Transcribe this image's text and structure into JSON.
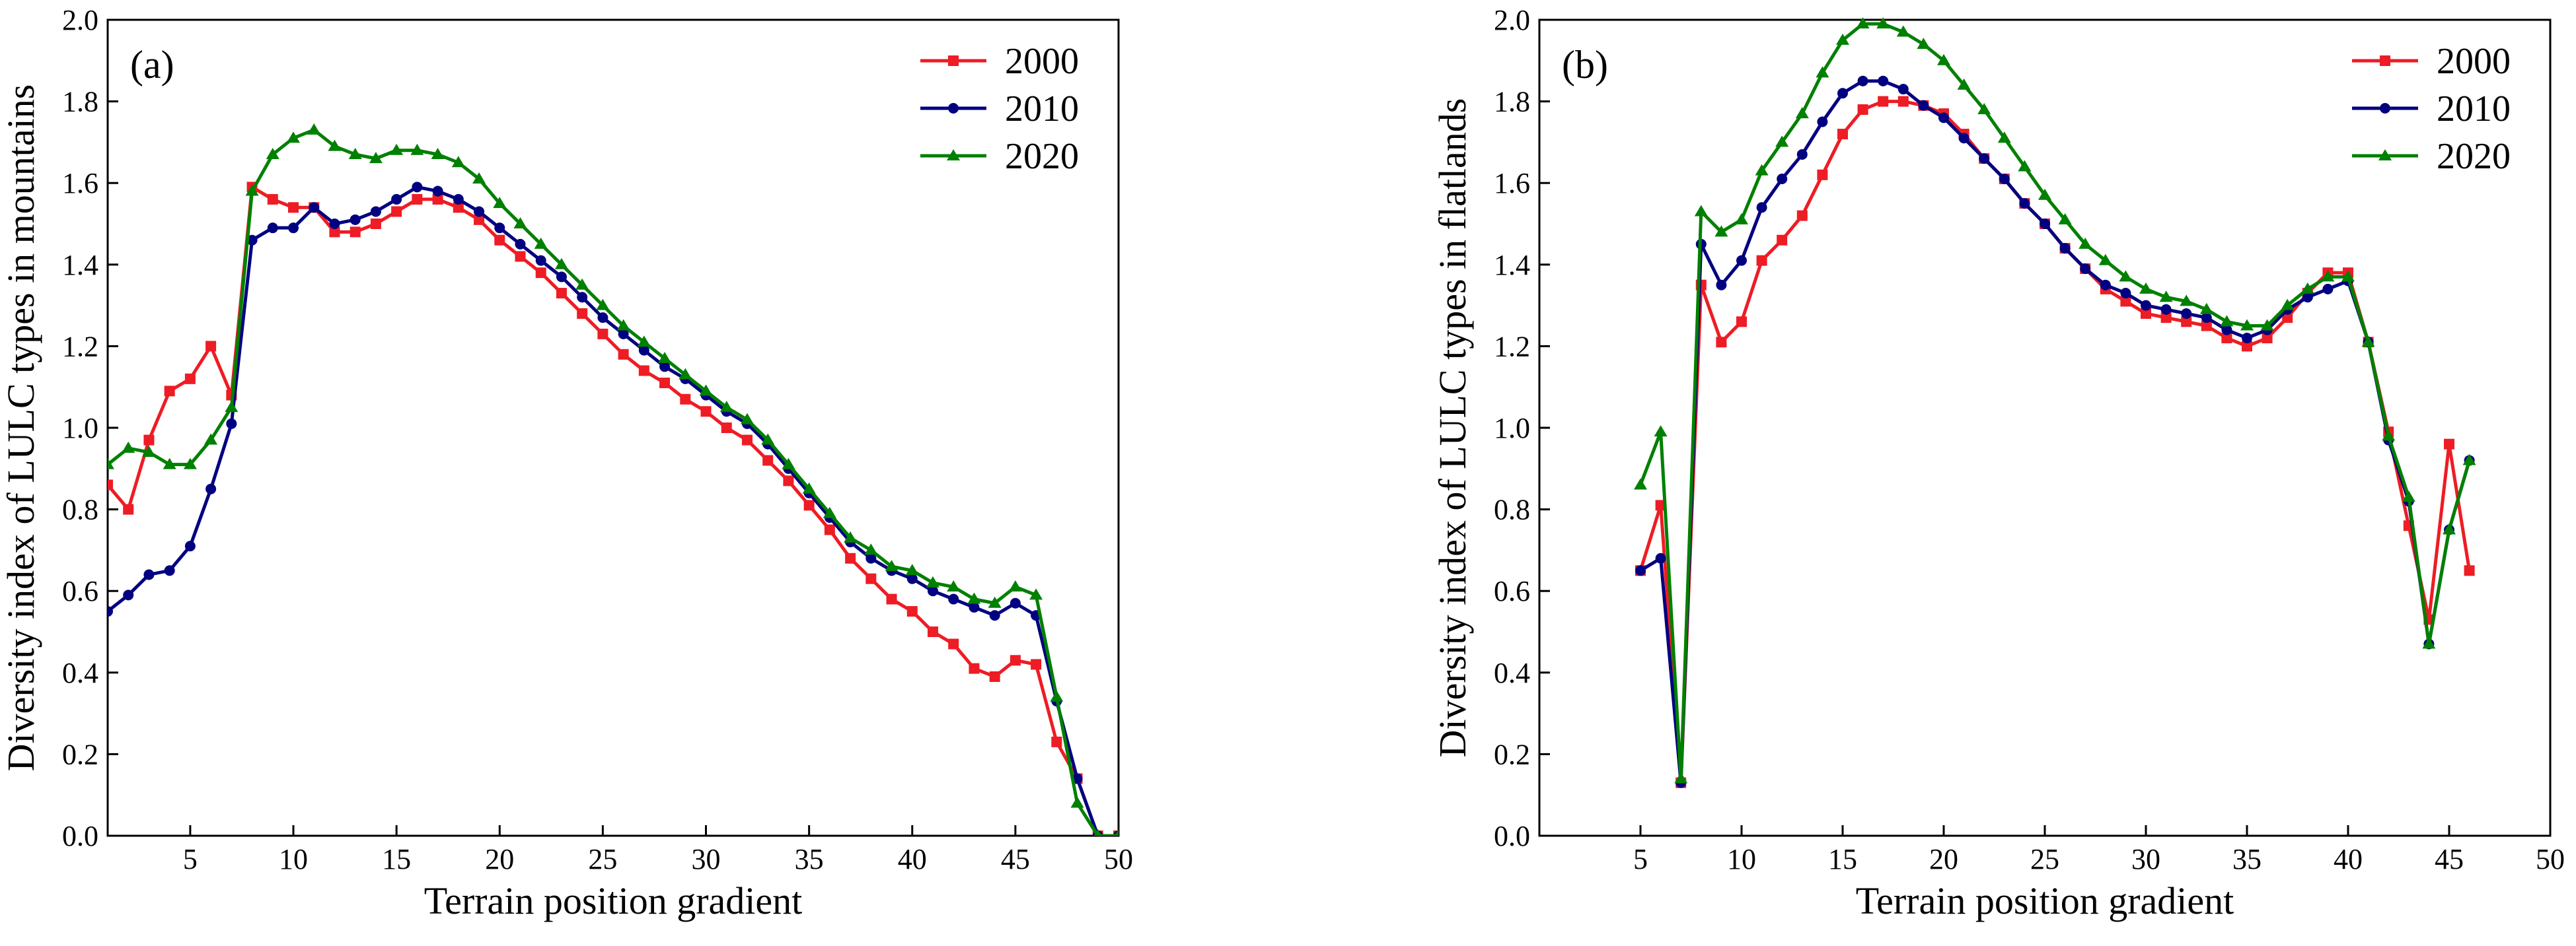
{
  "colors": {
    "2000": "#ee1c24",
    "2010": "#000080",
    "2020": "#008000"
  },
  "chart_data": [
    {
      "type": "line",
      "panel_label": "(a)",
      "xlabel": "Terrain position gradient",
      "ylabel": "Diversity index of LULC types in mountains",
      "xlim": [
        1,
        50
      ],
      "ylim": [
        0,
        2.0
      ],
      "xticks": [
        5,
        10,
        15,
        20,
        25,
        30,
        35,
        40,
        45,
        50
      ],
      "yticks": [
        0.0,
        0.2,
        0.4,
        0.6,
        0.8,
        1.0,
        1.2,
        1.4,
        1.6,
        1.8,
        2.0
      ],
      "ytick_labels": [
        "0.0",
        "0.2",
        "0.4",
        "0.6",
        "0.8",
        "1.0",
        "1.2",
        "1.4",
        "1.6",
        "1.8",
        "2.0"
      ],
      "legend_position": "top-right",
      "series": [
        {
          "name": "2000",
          "marker": "square",
          "x": [
            1,
            2,
            3,
            4,
            5,
            6,
            7,
            8,
            9,
            10,
            11,
            12,
            13,
            14,
            15,
            16,
            17,
            18,
            19,
            20,
            21,
            22,
            23,
            24,
            25,
            26,
            27,
            28,
            29,
            30,
            31,
            32,
            33,
            34,
            35,
            36,
            37,
            38,
            39,
            40,
            41,
            42,
            43,
            44,
            45,
            46,
            47,
            48,
            49,
            50
          ],
          "values": [
            0.86,
            0.8,
            0.97,
            1.09,
            1.12,
            1.2,
            1.08,
            1.59,
            1.56,
            1.54,
            1.54,
            1.48,
            1.48,
            1.5,
            1.53,
            1.56,
            1.56,
            1.54,
            1.51,
            1.46,
            1.42,
            1.38,
            1.33,
            1.28,
            1.23,
            1.18,
            1.14,
            1.11,
            1.07,
            1.04,
            1.0,
            0.97,
            0.92,
            0.87,
            0.81,
            0.75,
            0.68,
            0.63,
            0.58,
            0.55,
            0.5,
            0.47,
            0.41,
            0.39,
            0.43,
            0.42,
            0.23,
            0.14,
            0.0,
            0.0
          ]
        },
        {
          "name": "2010",
          "marker": "circle",
          "x": [
            1,
            2,
            3,
            4,
            5,
            6,
            7,
            8,
            9,
            10,
            11,
            12,
            13,
            14,
            15,
            16,
            17,
            18,
            19,
            20,
            21,
            22,
            23,
            24,
            25,
            26,
            27,
            28,
            29,
            30,
            31,
            32,
            33,
            34,
            35,
            36,
            37,
            38,
            39,
            40,
            41,
            42,
            43,
            44,
            45,
            46,
            47,
            48,
            49,
            50
          ],
          "values": [
            0.55,
            0.59,
            0.64,
            0.65,
            0.71,
            0.85,
            1.01,
            1.46,
            1.49,
            1.49,
            1.54,
            1.5,
            1.51,
            1.53,
            1.56,
            1.59,
            1.58,
            1.56,
            1.53,
            1.49,
            1.45,
            1.41,
            1.37,
            1.32,
            1.27,
            1.23,
            1.19,
            1.15,
            1.12,
            1.08,
            1.04,
            1.01,
            0.96,
            0.9,
            0.84,
            0.78,
            0.72,
            0.68,
            0.65,
            0.63,
            0.6,
            0.58,
            0.56,
            0.54,
            0.57,
            0.54,
            0.33,
            0.14,
            0.0,
            0.0
          ]
        },
        {
          "name": "2020",
          "marker": "triangle",
          "x": [
            1,
            2,
            3,
            4,
            5,
            6,
            7,
            8,
            9,
            10,
            11,
            12,
            13,
            14,
            15,
            16,
            17,
            18,
            19,
            20,
            21,
            22,
            23,
            24,
            25,
            26,
            27,
            28,
            29,
            30,
            31,
            32,
            33,
            34,
            35,
            36,
            37,
            38,
            39,
            40,
            41,
            42,
            43,
            44,
            45,
            46,
            47,
            48,
            49,
            50
          ],
          "values": [
            0.91,
            0.95,
            0.94,
            0.91,
            0.91,
            0.97,
            1.05,
            1.58,
            1.67,
            1.71,
            1.73,
            1.69,
            1.67,
            1.66,
            1.68,
            1.68,
            1.67,
            1.65,
            1.61,
            1.55,
            1.5,
            1.45,
            1.4,
            1.35,
            1.3,
            1.25,
            1.21,
            1.17,
            1.13,
            1.09,
            1.05,
            1.02,
            0.97,
            0.91,
            0.85,
            0.79,
            0.73,
            0.7,
            0.66,
            0.65,
            0.62,
            0.61,
            0.58,
            0.57,
            0.61,
            0.59,
            0.34,
            0.08,
            0.0,
            0.0
          ]
        }
      ]
    },
    {
      "type": "line",
      "panel_label": "(b)",
      "xlabel": "Terrain position gradient",
      "ylabel": "Diversity index of LULC types in flatlands",
      "xlim": [
        0,
        50
      ],
      "ylim": [
        0,
        2.0
      ],
      "xticks": [
        5,
        10,
        15,
        20,
        25,
        30,
        35,
        40,
        45,
        50
      ],
      "yticks": [
        0.0,
        0.2,
        0.4,
        0.6,
        0.8,
        1.0,
        1.2,
        1.4,
        1.6,
        1.8,
        2.0
      ],
      "ytick_labels": [
        "0.0",
        "0.2",
        "0.4",
        "0.6",
        "0.8",
        "1.0",
        "1.2",
        "1.4",
        "1.6",
        "1.8",
        "2.0"
      ],
      "legend_position": "top-right",
      "series": [
        {
          "name": "2000",
          "marker": "square",
          "x": [
            5,
            6,
            7,
            8,
            9,
            10,
            11,
            12,
            13,
            14,
            15,
            16,
            17,
            18,
            19,
            20,
            21,
            22,
            23,
            24,
            25,
            26,
            27,
            28,
            29,
            30,
            31,
            32,
            33,
            34,
            35,
            36,
            37,
            38,
            39,
            40,
            41,
            42,
            43,
            44,
            45,
            46
          ],
          "values": [
            0.65,
            0.81,
            0.13,
            1.35,
            1.21,
            1.26,
            1.41,
            1.46,
            1.52,
            1.62,
            1.72,
            1.78,
            1.8,
            1.8,
            1.79,
            1.77,
            1.72,
            1.66,
            1.61,
            1.55,
            1.5,
            1.44,
            1.39,
            1.34,
            1.31,
            1.28,
            1.27,
            1.26,
            1.25,
            1.22,
            1.2,
            1.22,
            1.27,
            1.33,
            1.38,
            1.38,
            1.21,
            0.99,
            0.76,
            0.53,
            0.96,
            0.65
          ]
        },
        {
          "name": "2010",
          "marker": "circle",
          "x": [
            5,
            6,
            7,
            8,
            9,
            10,
            11,
            12,
            13,
            14,
            15,
            16,
            17,
            18,
            19,
            20,
            21,
            22,
            23,
            24,
            25,
            26,
            27,
            28,
            29,
            30,
            31,
            32,
            33,
            34,
            35,
            36,
            37,
            38,
            39,
            40,
            41,
            42,
            43,
            44,
            45,
            46
          ],
          "values": [
            0.65,
            0.68,
            0.13,
            1.45,
            1.35,
            1.41,
            1.54,
            1.61,
            1.67,
            1.75,
            1.82,
            1.85,
            1.85,
            1.83,
            1.79,
            1.76,
            1.71,
            1.66,
            1.61,
            1.55,
            1.5,
            1.44,
            1.39,
            1.35,
            1.33,
            1.3,
            1.29,
            1.28,
            1.27,
            1.24,
            1.22,
            1.24,
            1.29,
            1.32,
            1.34,
            1.36,
            1.21,
            0.97,
            0.82,
            0.47,
            0.75,
            0.92
          ]
        },
        {
          "name": "2020",
          "marker": "triangle",
          "x": [
            5,
            6,
            7,
            8,
            9,
            10,
            11,
            12,
            13,
            14,
            15,
            16,
            17,
            18,
            19,
            20,
            21,
            22,
            23,
            24,
            25,
            26,
            27,
            28,
            29,
            30,
            31,
            32,
            33,
            34,
            35,
            36,
            37,
            38,
            39,
            40,
            41,
            42,
            43,
            44,
            45,
            46
          ],
          "values": [
            0.86,
            0.99,
            0.14,
            1.53,
            1.48,
            1.51,
            1.63,
            1.7,
            1.77,
            1.87,
            1.95,
            1.99,
            1.99,
            1.97,
            1.94,
            1.9,
            1.84,
            1.78,
            1.71,
            1.64,
            1.57,
            1.51,
            1.45,
            1.41,
            1.37,
            1.34,
            1.32,
            1.31,
            1.29,
            1.26,
            1.25,
            1.25,
            1.3,
            1.34,
            1.37,
            1.37,
            1.21,
            0.98,
            0.83,
            0.47,
            0.75,
            0.92
          ]
        }
      ]
    }
  ]
}
